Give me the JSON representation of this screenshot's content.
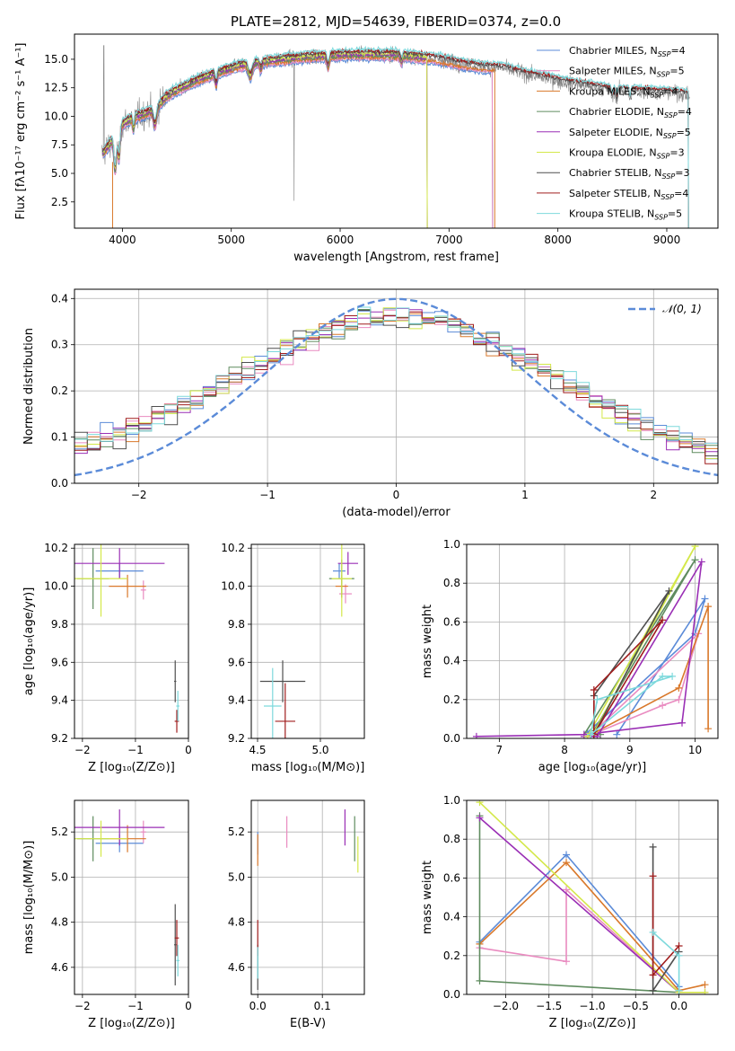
{
  "colors": {
    "chabrier_miles": "#5b8bd8",
    "salpeter_miles": "#e98bc0",
    "kroupa_miles": "#d9782a",
    "chabrier_elodie": "#5f8c5f",
    "salpeter_elodie": "#9a2fb5",
    "kroupa_elodie": "#d4e84a",
    "chabrier_stelib": "#4f4f4f",
    "salpeter_stelib": "#a01d1d",
    "kroupa_stelib": "#7dd9dc",
    "normal": "#5b8bd8",
    "grid": "#b0b0b0"
  },
  "chart_data": [
    {
      "id": "spectrum",
      "type": "line",
      "title": "PLATE=2812, MJD=54639, FIBERID=0374, z=0.0",
      "xlabel": "wavelength [Angstrom, rest frame]",
      "ylabel": "Flux [fλ10⁻¹⁷ erg cm⁻² s⁻¹ A⁻¹]",
      "xlim": [
        3560,
        9470
      ],
      "ylim": [
        0.2,
        17.2
      ],
      "xticks": [
        4000,
        5000,
        6000,
        7000,
        8000,
        9000
      ],
      "yticks": [
        2.5,
        5.0,
        7.5,
        10.0,
        12.5,
        15.0
      ],
      "grid": false,
      "legend_position": "top-right",
      "continuum": {
        "x": [
          3800,
          3900,
          4000,
          4100,
          4200,
          4300,
          4400,
          4500,
          4700,
          4900,
          5100,
          5300,
          5500,
          5700,
          5900,
          6100,
          6300,
          6500,
          6700,
          6900,
          7100,
          7300,
          7500,
          7700,
          7900,
          8100,
          8300,
          8500,
          8700,
          8900,
          9100,
          9200
        ],
        "y": [
          6.5,
          7.8,
          9.3,
          9.9,
          10.2,
          10.6,
          11.7,
          12.3,
          13.2,
          13.9,
          14.5,
          14.8,
          15.0,
          15.2,
          15.3,
          15.4,
          15.4,
          15.4,
          15.2,
          15.0,
          14.6,
          14.3,
          14.2,
          13.7,
          13.3,
          12.9,
          12.6,
          12.3,
          12.2,
          12.1,
          12.0,
          11.8
        ]
      },
      "series": [
        {
          "name": "Chabrier MILES, N_SSP=4",
          "color_key": "chabrier_miles",
          "x_max": 7400
        },
        {
          "name": "Salpeter MILES, N_SSP=5",
          "color_key": "salpeter_miles",
          "x_max": 7400
        },
        {
          "name": "Kroupa MILES, N_SSP=4",
          "color_key": "kroupa_miles",
          "x_max": 7420
        },
        {
          "name": "Chabrier ELODIE, N_SSP=4",
          "color_key": "chabrier_elodie",
          "x_max": 6800
        },
        {
          "name": "Salpeter ELODIE, N_SSP=5",
          "color_key": "salpeter_elodie",
          "x_max": 6800
        },
        {
          "name": "Kroupa ELODIE, N_SSP=3",
          "color_key": "kroupa_elodie",
          "x_max": 6800
        },
        {
          "name": "Chabrier STELIB, N_SSP=3",
          "color_key": "chabrier_stelib",
          "x_max": 9200
        },
        {
          "name": "Salpeter STELIB, N_SSP=4",
          "color_key": "salpeter_stelib",
          "x_max": 9200
        },
        {
          "name": "Kroupa STELIB, N_SSP=5",
          "color_key": "kroupa_stelib",
          "x_max": 9200
        }
      ]
    },
    {
      "id": "residuals",
      "type": "histogram",
      "xlabel": "(data-model)/error",
      "ylabel": "Normed distribution",
      "xlim": [
        -2.5,
        2.5
      ],
      "ylim": [
        0,
        0.42
      ],
      "xticks": [
        -2,
        -1,
        0,
        1,
        2
      ],
      "yticks": [
        0.0,
        0.1,
        0.2,
        0.3,
        0.4
      ],
      "grid": true,
      "legend_position": "top-right",
      "legend": "𝒩(0, 1)",
      "bin_width": 0.1,
      "bins_start": -2.5,
      "reference_curve": "normal pdf, mean 0, sigma 1",
      "series_note": "9 step histograms, one per model colour"
    },
    {
      "id": "age_vs_Z",
      "type": "errorbar",
      "xlabel": "Z [log₁₀(Z/Z⊙)]",
      "ylabel": "age  [log₁₀(age/yr)]",
      "xlim": [
        -2.15,
        0.0
      ],
      "ylim": [
        9.2,
        10.22
      ],
      "xticks": [
        -2,
        -1,
        0
      ],
      "yticks": [
        9.2,
        9.4,
        9.6,
        9.8,
        10.0,
        10.2
      ],
      "grid": true,
      "points": [
        {
          "c": "chabrier_miles",
          "x": -1.3,
          "y": 10.08,
          "xerr": 0.45,
          "yerr": 0.04
        },
        {
          "c": "salpeter_miles",
          "x": -0.85,
          "y": 9.98,
          "xerr": 0.05,
          "yerr": 0.05
        },
        {
          "c": "kroupa_miles",
          "x": -1.15,
          "y": 10.0,
          "xerr": 0.35,
          "yerr": 0.06
        },
        {
          "c": "chabrier_elodie",
          "x": -1.8,
          "y": 10.04,
          "xerr": 0.3,
          "yerr": 0.16
        },
        {
          "c": "salpeter_elodie",
          "x": -1.3,
          "y": 10.12,
          "xerr": 0.85,
          "yerr": 0.08
        },
        {
          "c": "kroupa_elodie",
          "x": -1.65,
          "y": 10.04,
          "xerr": 0.5,
          "yerr": 0.2
        },
        {
          "c": "chabrier_stelib",
          "x": -0.25,
          "y": 9.5,
          "xerr": 0.02,
          "yerr": 0.11
        },
        {
          "c": "salpeter_stelib",
          "x": -0.22,
          "y": 9.29,
          "xerr": 0.04,
          "yerr": 0.06
        },
        {
          "c": "kroupa_stelib",
          "x": -0.2,
          "y": 9.37,
          "xerr": 0.03,
          "yerr": 0.08
        }
      ]
    },
    {
      "id": "age_vs_mass",
      "type": "errorbar",
      "xlabel": "mass [log₁₀(M/M⊙)]",
      "ylabel": "",
      "xlim": [
        4.45,
        5.35
      ],
      "ylim": [
        9.2,
        10.22
      ],
      "xticks": [
        4.5,
        5.0
      ],
      "yticks": [
        9.2,
        9.4,
        9.6,
        9.8,
        10.0,
        10.2
      ],
      "grid": true,
      "points": [
        {
          "c": "chabrier_miles",
          "x": 5.15,
          "y": 10.08,
          "xerr": 0.05,
          "yerr": 0.04
        },
        {
          "c": "salpeter_miles",
          "x": 5.2,
          "y": 9.96,
          "xerr": 0.05,
          "yerr": 0.05
        },
        {
          "c": "kroupa_miles",
          "x": 5.17,
          "y": 10.0,
          "xerr": 0.05,
          "yerr": 0.06
        },
        {
          "c": "chabrier_elodie",
          "x": 5.17,
          "y": 10.04,
          "xerr": 0.1,
          "yerr": 0.1
        },
        {
          "c": "salpeter_elodie",
          "x": 5.22,
          "y": 10.12,
          "xerr": 0.08,
          "yerr": 0.06
        },
        {
          "c": "kroupa_elodie",
          "x": 5.17,
          "y": 10.04,
          "xerr": 0.08,
          "yerr": 0.2
        },
        {
          "c": "chabrier_stelib",
          "x": 4.7,
          "y": 9.5,
          "xerr": 0.18,
          "yerr": 0.11
        },
        {
          "c": "salpeter_stelib",
          "x": 4.72,
          "y": 9.29,
          "xerr": 0.08,
          "yerr": 0.2
        },
        {
          "c": "kroupa_stelib",
          "x": 4.62,
          "y": 9.37,
          "xerr": 0.07,
          "yerr": 0.2
        }
      ]
    },
    {
      "id": "weight_vs_age",
      "type": "line",
      "xlabel": "age  [log₁₀(age/yr)]",
      "ylabel": "mass weight",
      "xlim": [
        6.5,
        10.35
      ],
      "ylim": [
        0.0,
        1.0
      ],
      "xticks": [
        7,
        8,
        9,
        10
      ],
      "yticks": [
        0.0,
        0.2,
        0.4,
        0.6,
        0.8,
        1.0
      ],
      "grid": true,
      "series": [
        {
          "c": "chabrier_miles",
          "x": [
            8.8,
            10.15,
            10.0,
            8.35
          ],
          "y": [
            0.02,
            0.72,
            0.54,
            0.03
          ]
        },
        {
          "c": "salpeter_miles",
          "x": [
            8.35,
            9.5,
            9.75,
            10.05,
            8.4
          ],
          "y": [
            0.01,
            0.17,
            0.2,
            0.54,
            0.02
          ]
        },
        {
          "c": "kroupa_miles",
          "x": [
            8.35,
            9.75,
            10.2,
            10.2
          ],
          "y": [
            0.01,
            0.26,
            0.68,
            0.05
          ]
        },
        {
          "c": "chabrier_elodie",
          "x": [
            8.3,
            10.0,
            8.45,
            8.55
          ],
          "y": [
            0.02,
            0.92,
            0.04,
            0.02
          ]
        },
        {
          "c": "salpeter_elodie",
          "x": [
            6.65,
            8.3,
            9.8,
            10.1,
            8.5,
            8.3
          ],
          "y": [
            0.01,
            0.02,
            0.08,
            0.91,
            0.01,
            0.01
          ]
        },
        {
          "c": "kroupa_elodie",
          "x": [
            8.35,
            10.0,
            8.45
          ],
          "y": [
            0.01,
            0.99,
            0.03
          ]
        },
        {
          "c": "chabrier_stelib",
          "x": [
            8.45,
            9.6,
            8.45,
            8.45
          ],
          "y": [
            0.02,
            0.76,
            0.22,
            0.02
          ]
        },
        {
          "c": "salpeter_stelib",
          "x": [
            8.45,
            9.5,
            8.45,
            8.45
          ],
          "y": [
            0.02,
            0.61,
            0.25,
            0.02
          ]
        },
        {
          "c": "kroupa_stelib",
          "x": [
            8.4,
            9.5,
            9.65,
            8.5,
            8.4
          ],
          "y": [
            0.02,
            0.32,
            0.32,
            0.2,
            0.02
          ]
        }
      ]
    },
    {
      "id": "mass_vs_Z",
      "type": "errorbar",
      "xlabel": "Z [log₁₀(Z/Z⊙)]",
      "ylabel": "mass [log₁₀(M/M⊙)]",
      "xlim": [
        -2.15,
        0.0
      ],
      "ylim": [
        4.48,
        5.34
      ],
      "xticks": [
        -2,
        -1,
        0
      ],
      "yticks": [
        4.6,
        4.8,
        5.0,
        5.2
      ],
      "grid": true,
      "points": [
        {
          "c": "chabrier_miles",
          "x": -1.3,
          "y": 5.15,
          "xerr": 0.45,
          "yerr": 0.04
        },
        {
          "c": "salpeter_miles",
          "x": -0.85,
          "y": 5.2,
          "xerr": 0.05,
          "yerr": 0.05
        },
        {
          "c": "kroupa_miles",
          "x": -1.15,
          "y": 5.17,
          "xerr": 0.35,
          "yerr": 0.06
        },
        {
          "c": "chabrier_elodie",
          "x": -1.8,
          "y": 5.17,
          "xerr": 0.3,
          "yerr": 0.1
        },
        {
          "c": "salpeter_elodie",
          "x": -1.3,
          "y": 5.22,
          "xerr": 0.85,
          "yerr": 0.08
        },
        {
          "c": "kroupa_elodie",
          "x": -1.65,
          "y": 5.17,
          "xerr": 0.5,
          "yerr": 0.08
        },
        {
          "c": "chabrier_stelib",
          "x": -0.25,
          "y": 4.7,
          "xerr": 0.02,
          "yerr": 0.18
        },
        {
          "c": "salpeter_stelib",
          "x": -0.22,
          "y": 4.73,
          "xerr": 0.04,
          "yerr": 0.08
        },
        {
          "c": "kroupa_stelib",
          "x": -0.2,
          "y": 4.63,
          "xerr": 0.03,
          "yerr": 0.07
        }
      ]
    },
    {
      "id": "mass_vs_ebv",
      "type": "errorbar",
      "xlabel": "E(B-V)",
      "ylabel": "",
      "xlim": [
        -0.01,
        0.165
      ],
      "ylim": [
        4.48,
        5.34
      ],
      "xticks": [
        0.0,
        0.1
      ],
      "yticks": [
        4.6,
        4.8,
        5.0,
        5.2
      ],
      "grid": true,
      "points": [
        {
          "c": "chabrier_miles",
          "x": 0.0,
          "y": 5.15,
          "xerr": 0.0,
          "yerr": 0.05
        },
        {
          "c": "salpeter_miles",
          "x": 0.045,
          "y": 5.2,
          "xerr": 0.0,
          "yerr": 0.07
        },
        {
          "c": "kroupa_miles",
          "x": 0.0,
          "y": 5.12,
          "xerr": 0.0,
          "yerr": 0.07
        },
        {
          "c": "chabrier_elodie",
          "x": 0.15,
          "y": 5.17,
          "xerr": 0.0,
          "yerr": 0.1
        },
        {
          "c": "salpeter_elodie",
          "x": 0.135,
          "y": 5.22,
          "xerr": 0.0,
          "yerr": 0.08
        },
        {
          "c": "kroupa_elodie",
          "x": 0.155,
          "y": 5.1,
          "xerr": 0.0,
          "yerr": 0.08
        },
        {
          "c": "chabrier_stelib",
          "x": 0.0,
          "y": 4.6,
          "xerr": 0.0,
          "yerr": 0.1
        },
        {
          "c": "salpeter_stelib",
          "x": 0.0,
          "y": 4.73,
          "xerr": 0.0,
          "yerr": 0.08
        },
        {
          "c": "kroupa_stelib",
          "x": 0.0,
          "y": 4.62,
          "xerr": 0.0,
          "yerr": 0.07
        }
      ]
    },
    {
      "id": "weight_vs_Z",
      "type": "line",
      "xlabel": "Z [log₁₀(Z/Z⊙)]",
      "ylabel": "mass weight",
      "xlim": [
        -2.45,
        0.45
      ],
      "ylim": [
        0.0,
        1.0
      ],
      "xticks": [
        -2.0,
        -1.5,
        -1.0,
        -0.5,
        0.0
      ],
      "yticks": [
        0.0,
        0.2,
        0.4,
        0.6,
        0.8,
        1.0
      ],
      "grid": true,
      "series": [
        {
          "c": "chabrier_miles",
          "x": [
            -2.3,
            -1.3,
            0.0,
            0.0
          ],
          "y": [
            0.27,
            0.72,
            0.04,
            0.02
          ]
        },
        {
          "c": "salpeter_miles",
          "x": [
            -2.3,
            -1.3,
            -1.3,
            0.0
          ],
          "y": [
            0.24,
            0.17,
            0.54,
            0.01
          ]
        },
        {
          "c": "kroupa_miles",
          "x": [
            -2.3,
            -1.3,
            0.0,
            0.3
          ],
          "y": [
            0.26,
            0.68,
            0.02,
            0.05
          ]
        },
        {
          "c": "chabrier_elodie",
          "x": [
            -2.3,
            -2.3,
            0.0
          ],
          "y": [
            0.92,
            0.07,
            0.01
          ]
        },
        {
          "c": "salpeter_elodie",
          "x": [
            -2.3,
            0.0,
            0.3
          ],
          "y": [
            0.91,
            0.01,
            0.01
          ]
        },
        {
          "c": "kroupa_elodie",
          "x": [
            -2.3,
            0.0,
            0.3
          ],
          "y": [
            0.99,
            0.01,
            0.01
          ]
        },
        {
          "c": "chabrier_stelib",
          "x": [
            -0.3,
            -0.3,
            0.0
          ],
          "y": [
            0.76,
            0.02,
            0.22
          ]
        },
        {
          "c": "salpeter_stelib",
          "x": [
            -0.3,
            -0.3,
            0.0
          ],
          "y": [
            0.61,
            0.1,
            0.25
          ]
        },
        {
          "c": "kroupa_stelib",
          "x": [
            -0.3,
            0.0,
            0.0
          ],
          "y": [
            0.32,
            0.2,
            0.02
          ]
        }
      ]
    }
  ]
}
